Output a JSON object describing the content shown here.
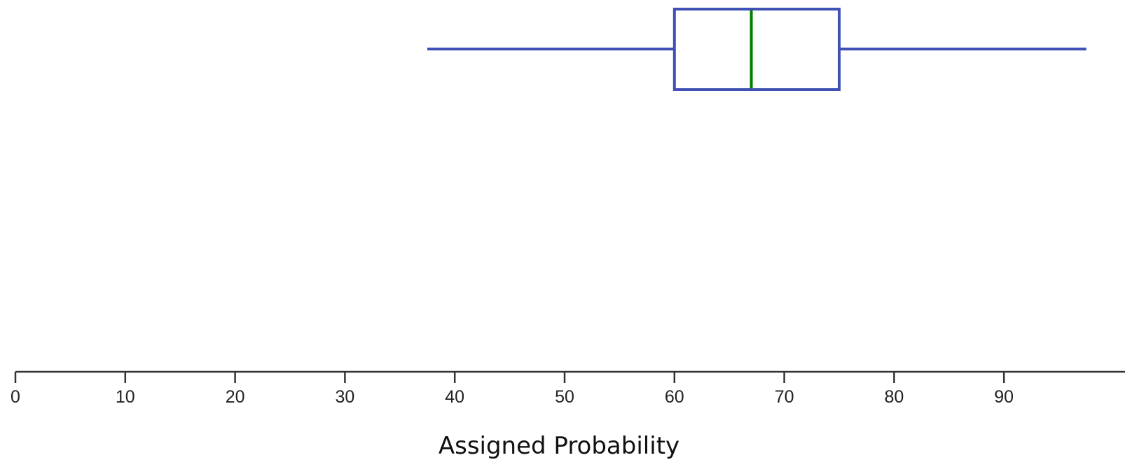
{
  "chart_data": {
    "type": "boxplot",
    "xlabel": "Assigned Probability",
    "xlim": [
      0,
      98
    ],
    "ticks": [
      0,
      10,
      20,
      30,
      40,
      50,
      60,
      70,
      80,
      90
    ],
    "grid": false,
    "box": {
      "whisker_low": 37.5,
      "q1": 60,
      "median": 67,
      "q3": 75,
      "whisker_high": 97.5
    },
    "colors": {
      "box": "#3f51b5",
      "median": "#008000",
      "axis": "#333333"
    }
  }
}
